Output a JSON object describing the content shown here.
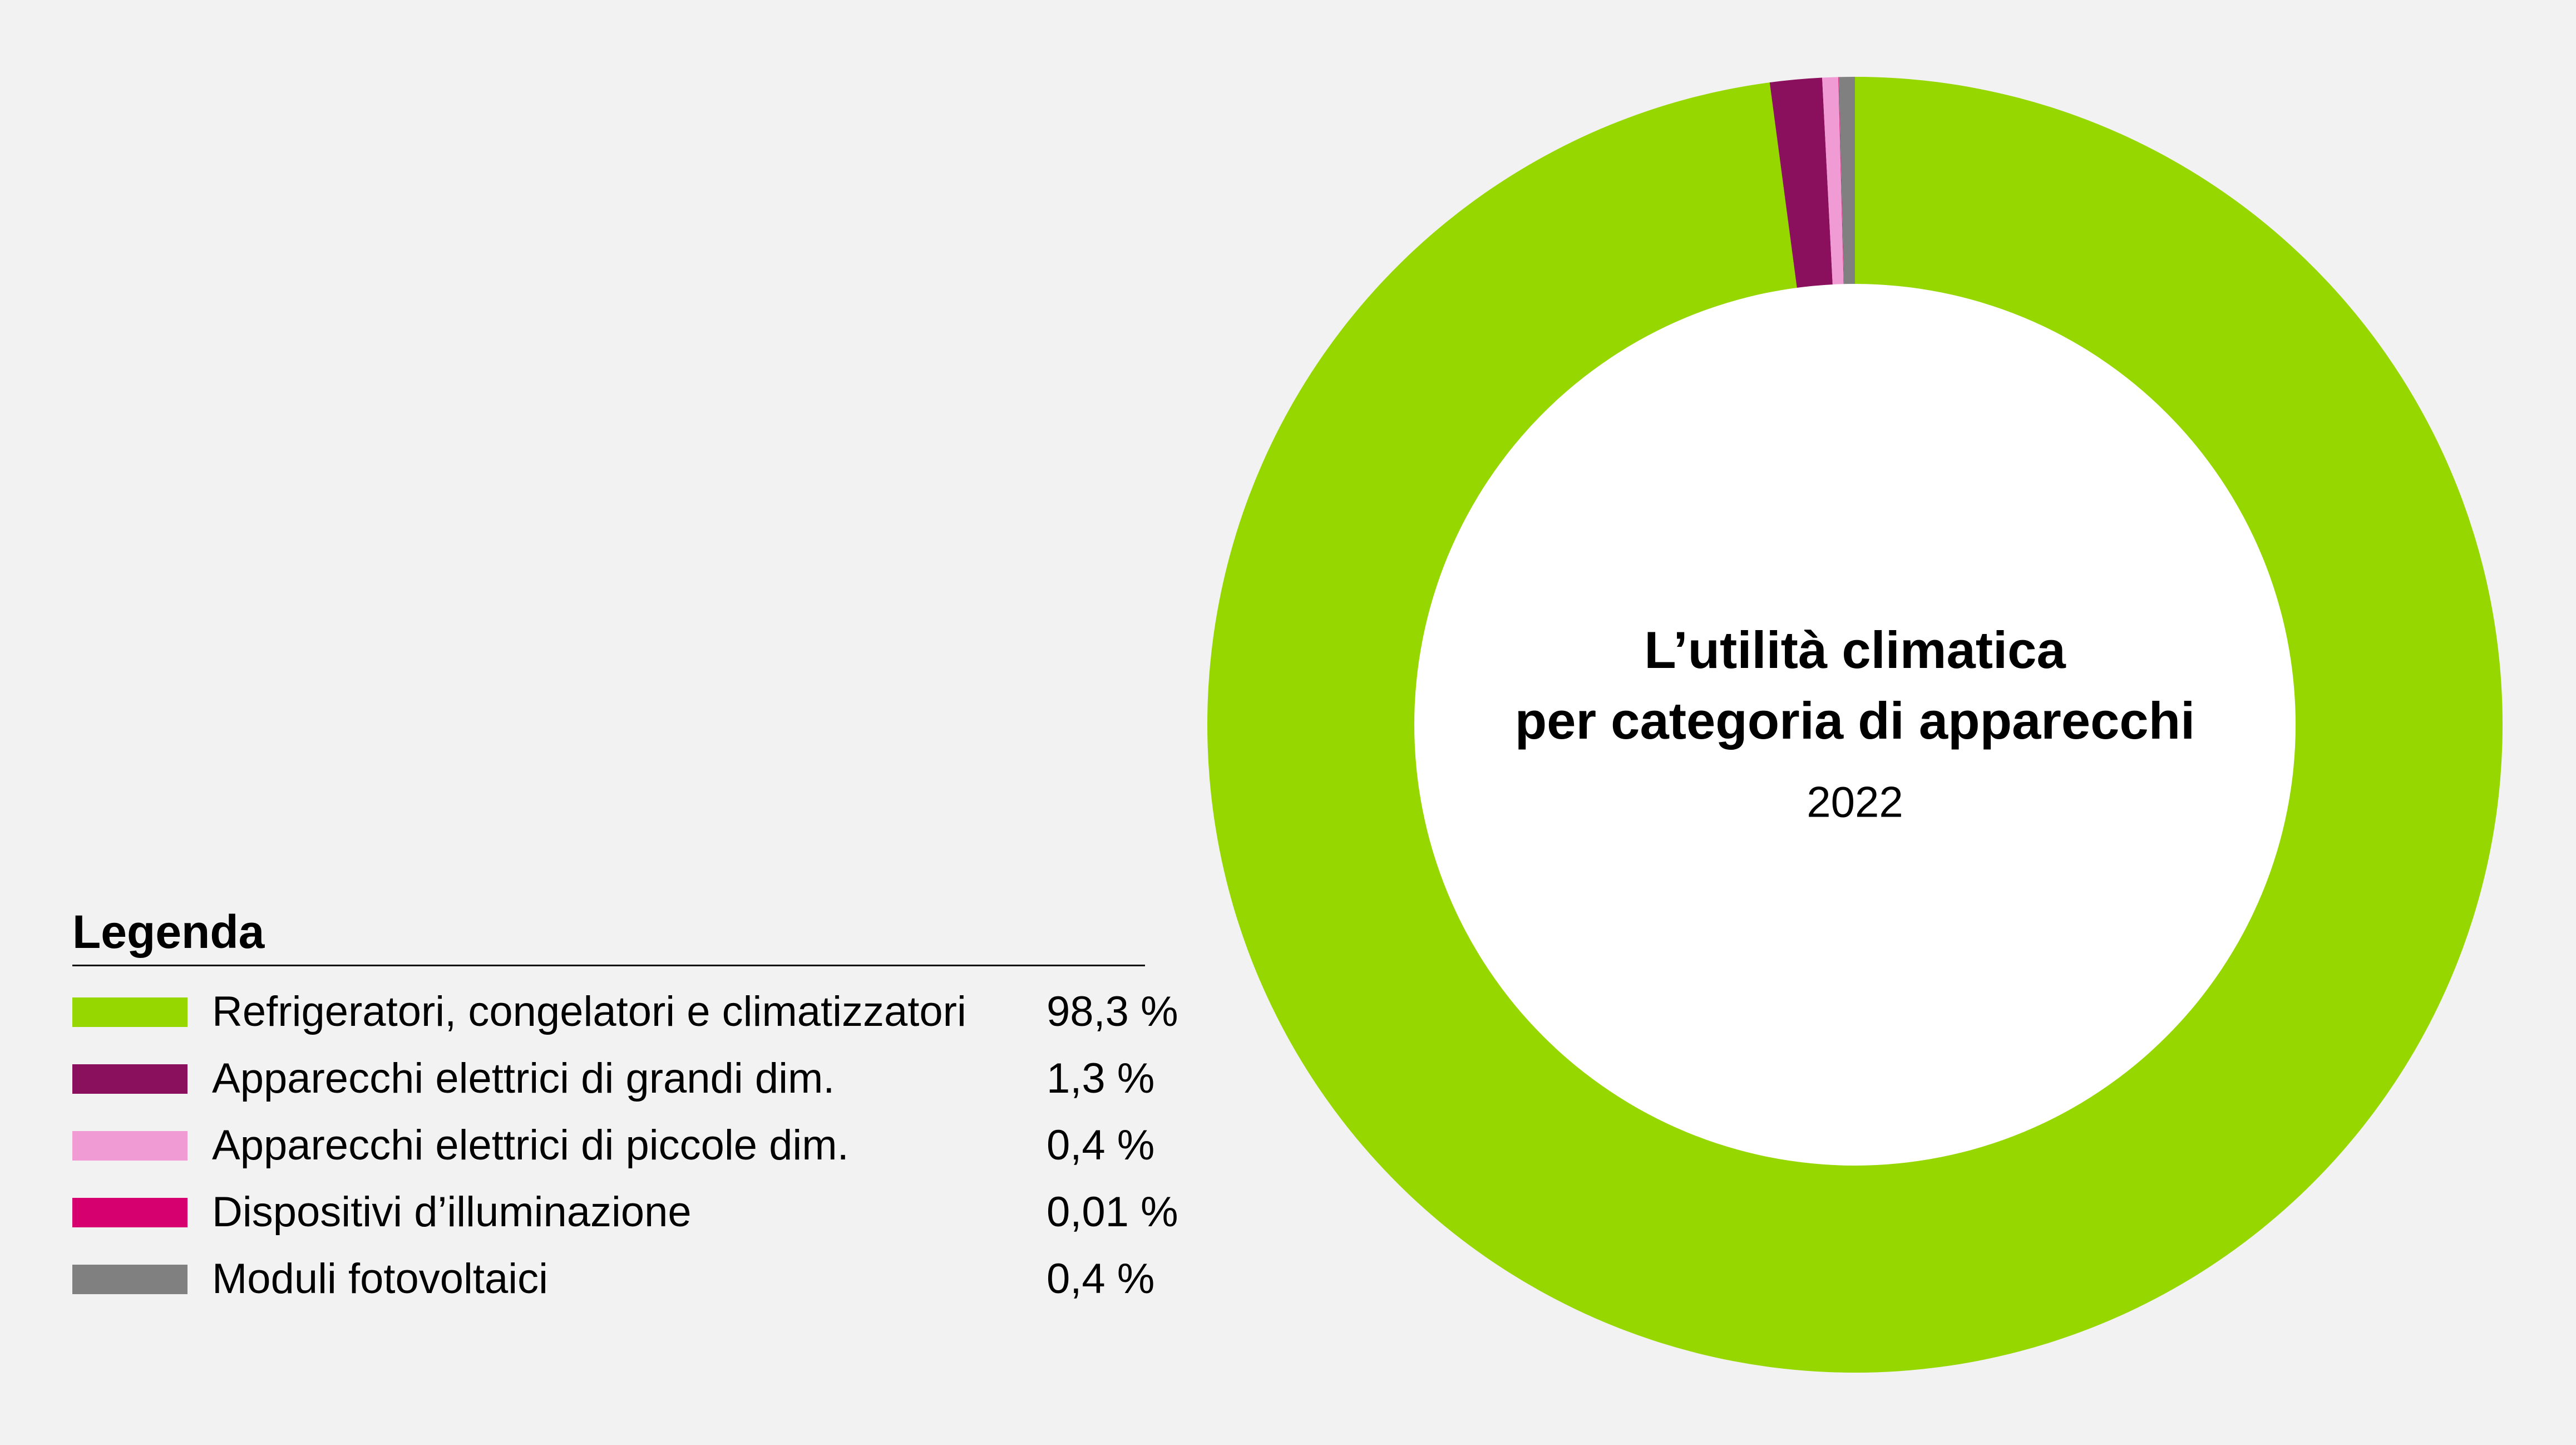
{
  "chart_data": {
    "type": "donut",
    "title": [
      "L’utilità climatica",
      "per categoria di apparecchi"
    ],
    "subtitle": "2022",
    "legend_title": "Legenda",
    "categories": [
      "Refrigeratori, congelatori e climatizzatori",
      "Apparecchi elettrici di grandi dim.",
      "Apparecchi elettrici di piccole dim.",
      "Dispositivi d’illuminazione",
      "Moduli fotovoltaici"
    ],
    "values": [
      98.3,
      1.3,
      0.4,
      0.01,
      0.4
    ],
    "value_labels": [
      "98,3 %",
      "1,3 %",
      "0,4 %",
      "0,01 %",
      "0,4 %"
    ],
    "colors": [
      "#97d700",
      "#8a0f5d",
      "#f09bd3",
      "#d6006e",
      "#808080"
    ]
  }
}
